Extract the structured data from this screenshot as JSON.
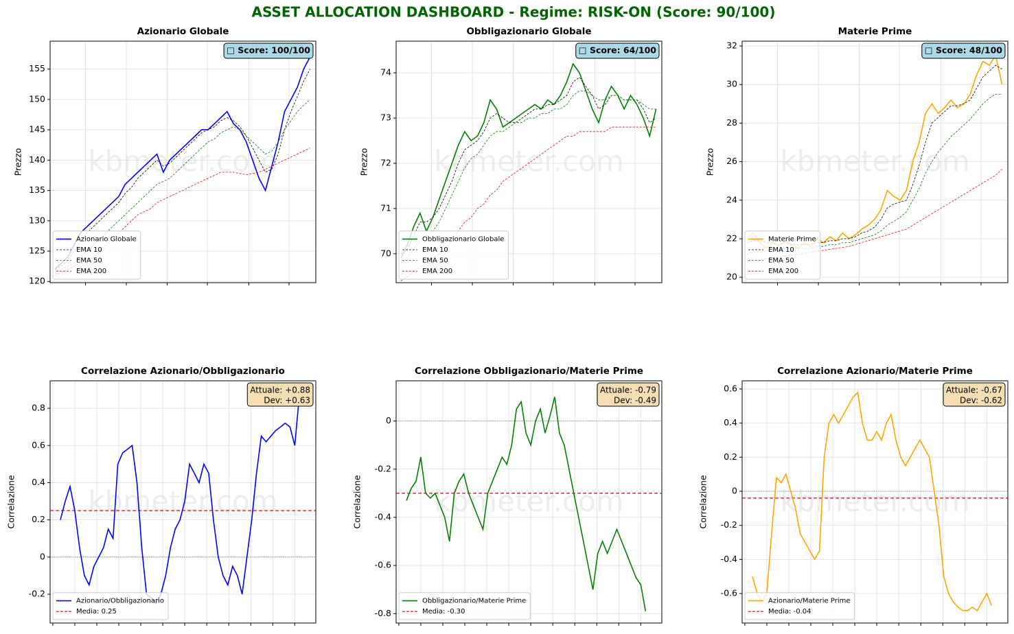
{
  "title": "ASSET ALLOCATION DASHBOARD - Regime: RISK-ON  (Score: 90/100)",
  "chart_data": [
    {
      "type": "line",
      "title": "Azionario Globale",
      "y_label": "Prezzo",
      "watermark": "kbmeter.com",
      "badge": "□ Score: 100/100",
      "xlim": [
        -0.75,
        40.9
      ],
      "xticks": [
        4.8,
        11.2,
        17.6,
        23.9,
        30.4,
        36.7
      ],
      "ylim": [
        119.8,
        159.6
      ],
      "yticks": [
        120,
        125,
        130,
        135,
        140,
        145,
        150,
        155
      ],
      "grid": true,
      "legend": "lower left",
      "series": [
        {
          "name": "Azionario Globale",
          "color": "#0000ff",
          "style": "solid",
          "values": [
            122,
            123,
            124,
            126,
            128,
            129,
            130,
            131,
            132,
            133,
            134,
            136,
            137,
            138,
            139,
            140,
            141,
            138,
            140,
            141,
            142,
            143,
            144,
            145,
            145,
            146,
            147,
            148,
            146,
            145,
            143,
            140,
            137,
            135,
            139,
            143,
            148,
            150,
            152,
            155,
            157
          ]
        },
        {
          "name": "EMA 10",
          "color": "#000000",
          "style": "dashed",
          "values": [
            122,
            122.5,
            123.5,
            125,
            126.5,
            128,
            129,
            130,
            131,
            132,
            133,
            134.5,
            135.5,
            137,
            138,
            139,
            140,
            139,
            139.5,
            140.5,
            141.5,
            142.5,
            143.5,
            144.5,
            145,
            145.5,
            146.5,
            147,
            146.5,
            145.5,
            144,
            142,
            140,
            138,
            138.5,
            141,
            145,
            148,
            150.5,
            153,
            155
          ]
        },
        {
          "name": "EMA 50",
          "color": "#008000",
          "style": "dashed",
          "values": [
            121.5,
            122,
            122.5,
            123,
            124,
            125,
            126,
            127,
            128,
            129,
            130,
            131,
            132,
            133,
            134,
            135,
            136,
            136.5,
            137,
            138,
            139,
            140,
            141,
            142,
            143,
            143.5,
            144.5,
            145,
            145.5,
            145,
            144,
            143,
            142,
            141,
            141.5,
            143,
            145,
            146.5,
            148,
            149,
            150
          ]
        },
        {
          "name": "EMA 200",
          "color": "#ff0000",
          "style": "dashed",
          "values": [
            121,
            121.5,
            122,
            122.5,
            123,
            123.5,
            124,
            125,
            126,
            127,
            128,
            129,
            130,
            131,
            131.5,
            132,
            133,
            133.5,
            134,
            134.5,
            135,
            135.5,
            136,
            136.5,
            137,
            137.5,
            138,
            138,
            138,
            137.8,
            137.6,
            137.8,
            138,
            138.5,
            139,
            139.5,
            140,
            140.5,
            141,
            141.5,
            142
          ]
        }
      ]
    },
    {
      "type": "line",
      "title": "Obbligazionario Globale",
      "y_label": "Prezzo",
      "watermark": "kbmeter.com",
      "badge": "□ Score: 64/100",
      "xlim": [
        -0.75,
        40.9
      ],
      "xticks": [
        4.8,
        11.2,
        17.6,
        23.9,
        30.4,
        36.7
      ],
      "ylim": [
        69.36,
        74.7
      ],
      "yticks": [
        70,
        71,
        72,
        73,
        74
      ],
      "grid": true,
      "legend": "lower left",
      "series": [
        {
          "name": "Obbligazionario Globale",
          "color": "#008000",
          "style": "solid",
          "values": [
            69.9,
            70.2,
            70.6,
            70.9,
            70.5,
            70.8,
            71.2,
            71.6,
            72.0,
            72.4,
            72.7,
            72.5,
            72.6,
            72.9,
            73.4,
            73.2,
            72.8,
            72.9,
            73.0,
            73.1,
            73.2,
            73.3,
            73.2,
            73.4,
            73.3,
            73.5,
            73.8,
            74.2,
            74.0,
            73.6,
            73.2,
            72.9,
            73.4,
            73.7,
            73.5,
            73.2,
            73.5,
            73.3,
            73.0,
            72.6,
            73.2
          ]
        },
        {
          "name": "EMA 10",
          "color": "#000000",
          "style": "dashed",
          "values": [
            70.0,
            70.1,
            70.4,
            70.7,
            70.7,
            70.8,
            71.0,
            71.3,
            71.6,
            72.0,
            72.3,
            72.4,
            72.5,
            72.7,
            73.0,
            73.1,
            73.0,
            72.9,
            72.9,
            73.0,
            73.1,
            73.2,
            73.2,
            73.3,
            73.3,
            73.4,
            73.5,
            73.8,
            73.9,
            73.7,
            73.5,
            73.2,
            73.3,
            73.5,
            73.5,
            73.4,
            73.4,
            73.4,
            73.2,
            72.9,
            73.0
          ]
        },
        {
          "name": "EMA 50",
          "color": "#008000",
          "style": "dashed",
          "values": [
            69.8,
            69.9,
            70.1,
            70.3,
            70.4,
            70.5,
            70.7,
            71.0,
            71.3,
            71.6,
            71.9,
            72.1,
            72.2,
            72.4,
            72.6,
            72.7,
            72.7,
            72.8,
            72.9,
            72.9,
            73.0,
            73.0,
            73.1,
            73.1,
            73.2,
            73.2,
            73.3,
            73.5,
            73.6,
            73.6,
            73.5,
            73.4,
            73.4,
            73.5,
            73.5,
            73.4,
            73.4,
            73.4,
            73.3,
            73.2,
            73.2
          ]
        },
        {
          "name": "EMA 200",
          "color": "#ff0000",
          "style": "dashed",
          "values": [
            69.4,
            69.5,
            69.6,
            69.7,
            69.8,
            69.9,
            70.0,
            70.1,
            70.3,
            70.5,
            70.7,
            70.8,
            71.0,
            71.1,
            71.3,
            71.4,
            71.6,
            71.7,
            71.8,
            71.9,
            72.0,
            72.1,
            72.2,
            72.3,
            72.4,
            72.5,
            72.6,
            72.6,
            72.7,
            72.7,
            72.7,
            72.7,
            72.7,
            72.8,
            72.8,
            72.8,
            72.8,
            72.8,
            72.8,
            72.8,
            72.8
          ]
        }
      ]
    },
    {
      "type": "line",
      "title": "Materie Prime",
      "y_label": "Prezzo",
      "watermark": "kbmeter.com",
      "badge": "□ Score: 48/100",
      "xlim": [
        -0.75,
        40.9
      ],
      "xticks": [
        4.8,
        11.2,
        17.6,
        23.9,
        30.4,
        36.7
      ],
      "ylim": [
        19.72,
        32.25
      ],
      "yticks": [
        20,
        22,
        24,
        26,
        28,
        30,
        32
      ],
      "grid": true,
      "legend": "lower left",
      "series": [
        {
          "name": "Materie Prime",
          "color": "#ffa500",
          "style": "solid",
          "values": [
            22.0,
            22.3,
            21.8,
            21.5,
            21.8,
            21.6,
            21.9,
            21.7,
            21.5,
            21.8,
            21.6,
            22.0,
            21.8,
            22.1,
            21.9,
            22.3,
            22.0,
            22.2,
            22.5,
            22.7,
            23.0,
            23.5,
            24.5,
            24.2,
            24.0,
            24.5,
            26.0,
            27.0,
            28.5,
            29.0,
            28.5,
            28.8,
            29.2,
            28.8,
            29.0,
            29.5,
            30.5,
            31.2,
            31.0,
            31.5,
            30.0
          ]
        },
        {
          "name": "EMA 10",
          "color": "#000000",
          "style": "dashed",
          "values": [
            21.8,
            21.9,
            21.9,
            21.8,
            21.8,
            21.7,
            21.8,
            21.7,
            21.7,
            21.7,
            21.7,
            21.8,
            21.8,
            21.9,
            21.9,
            22.0,
            22.0,
            22.1,
            22.3,
            22.4,
            22.6,
            23.0,
            23.6,
            23.8,
            23.9,
            24.0,
            24.8,
            25.8,
            27.0,
            28.0,
            28.3,
            28.6,
            28.9,
            28.9,
            29.0,
            29.2,
            29.8,
            30.4,
            30.7,
            31.0,
            30.8
          ]
        },
        {
          "name": "EMA 50",
          "color": "#008000",
          "style": "dashed",
          "values": [
            21.2,
            21.3,
            21.3,
            21.4,
            21.4,
            21.4,
            21.5,
            21.5,
            21.5,
            21.5,
            21.5,
            21.6,
            21.6,
            21.7,
            21.7,
            21.8,
            21.8,
            21.9,
            22.0,
            22.1,
            22.2,
            22.4,
            22.7,
            22.9,
            23.1,
            23.4,
            24.0,
            24.6,
            25.4,
            26.0,
            26.5,
            26.9,
            27.3,
            27.6,
            27.9,
            28.2,
            28.6,
            29.0,
            29.3,
            29.5,
            29.5
          ]
        },
        {
          "name": "EMA 200",
          "color": "#ff0000",
          "style": "dashed",
          "values": [
            20.8,
            20.85,
            20.9,
            20.95,
            21.0,
            21.05,
            21.1,
            21.15,
            21.2,
            21.25,
            21.3,
            21.35,
            21.4,
            21.45,
            21.5,
            21.55,
            21.6,
            21.7,
            21.8,
            21.9,
            22.0,
            22.1,
            22.2,
            22.3,
            22.4,
            22.5,
            22.7,
            22.9,
            23.1,
            23.3,
            23.5,
            23.7,
            23.9,
            24.1,
            24.3,
            24.5,
            24.7,
            24.9,
            25.1,
            25.3,
            25.6
          ]
        }
      ]
    },
    {
      "type": "line",
      "title": "Correlazione Azionario/Obbligazionario",
      "y_label": "Correlazione",
      "watermark": "kbmeter.com",
      "note": [
        "Attuale: +0.88",
        "Dev: +0.63"
      ],
      "xlim": [
        -2.16,
        53.4
      ],
      "xticks": [
        -1.6,
        3,
        7.6,
        12.2,
        16.8,
        21.4,
        26,
        30.6,
        35.2,
        39.8,
        44.4,
        49
      ],
      "ylim": [
        -0.355,
        0.948
      ],
      "yticks": [
        -0.2,
        0.0,
        0.2,
        0.4,
        0.6,
        0.8
      ],
      "grid": true,
      "legend": "lower left",
      "series": [
        {
          "name": "Azionario/Obbligazionario",
          "color": "#0000ff",
          "style": "solid",
          "values": [
            0.2,
            0.3,
            0.38,
            0.25,
            0.05,
            -0.1,
            -0.15,
            -0.05,
            0.0,
            0.05,
            0.15,
            0.1,
            0.5,
            0.56,
            0.58,
            0.6,
            0.4,
            0.05,
            -0.2,
            -0.22,
            -0.25,
            -0.2,
            -0.1,
            0.05,
            0.15,
            0.2,
            0.3,
            0.5,
            0.45,
            0.4,
            0.5,
            0.45,
            0.2,
            0.0,
            -0.1,
            -0.15,
            -0.05,
            -0.1,
            -0.2,
            0.0,
            0.2,
            0.45,
            0.65,
            0.62,
            0.65,
            0.68,
            0.7,
            0.72,
            0.7,
            0.6,
            0.88
          ]
        }
      ],
      "hline": {
        "name": "Media: 0.25",
        "value": 0.25,
        "color": "#ff0000"
      }
    },
    {
      "type": "line",
      "title": "Correlazione Obbligazionario/Materie Prime",
      "y_label": "Correlazione",
      "watermark": "kbmeter.com",
      "note": [
        "Attuale: -0.79",
        "Dev: -0.49"
      ],
      "xlim": [
        -2.16,
        53.4
      ],
      "xticks": [
        -1.6,
        3,
        7.6,
        12.2,
        16.8,
        21.4,
        26,
        30.6,
        35.2,
        39.8,
        44.4,
        49
      ],
      "ylim": [
        -0.839,
        0.167
      ],
      "yticks": [
        -0.8,
        -0.6,
        -0.4,
        -0.2,
        0.0
      ],
      "grid": true,
      "legend": "lower left",
      "series": [
        {
          "name": "Obbligazionario/Materie Prime",
          "color": "#008000",
          "style": "solid",
          "values": [
            -0.33,
            -0.28,
            -0.25,
            -0.15,
            -0.3,
            -0.32,
            -0.3,
            -0.35,
            -0.4,
            -0.5,
            -0.3,
            -0.25,
            -0.22,
            -0.3,
            -0.35,
            -0.4,
            -0.45,
            -0.3,
            -0.25,
            -0.2,
            -0.15,
            -0.18,
            -0.1,
            0.05,
            0.08,
            -0.05,
            -0.1,
            0.0,
            0.05,
            -0.05,
            0.02,
            0.1,
            -0.05,
            -0.1,
            -0.2,
            -0.3,
            -0.4,
            -0.5,
            -0.6,
            -0.7,
            -0.55,
            -0.5,
            -0.55,
            -0.5,
            -0.45,
            -0.5,
            -0.55,
            -0.6,
            -0.65,
            -0.68,
            -0.79
          ]
        }
      ],
      "hline": {
        "name": "Media: -0.30",
        "value": -0.3,
        "color": "#ff0000"
      }
    },
    {
      "type": "line",
      "title": "Correlazione Azionario/Materie Prime",
      "y_label": "Correlazione",
      "watermark": "kbmeter.com",
      "note": [
        "Attuale: -0.67",
        "Dev: -0.62"
      ],
      "xlim": [
        -2.16,
        53.4
      ],
      "xticks": [
        -1.6,
        3,
        7.6,
        12.2,
        16.8,
        21.4,
        26,
        30.6,
        35.2,
        39.8,
        44.4,
        49
      ],
      "ylim": [
        -0.773,
        0.648
      ],
      "yticks": [
        -0.6,
        -0.4,
        -0.2,
        0.0,
        0.2,
        0.4,
        0.6
      ],
      "grid": true,
      "legend": "lower left",
      "series": [
        {
          "name": "Azionario/Materie Prime",
          "color": "#ffa500",
          "style": "solid",
          "values": [
            -0.5,
            -0.6,
            -0.65,
            -0.6,
            -0.25,
            0.08,
            0.05,
            0.1,
            0.0,
            -0.1,
            -0.25,
            -0.3,
            -0.35,
            -0.4,
            -0.35,
            0.2,
            0.4,
            0.45,
            0.4,
            0.45,
            0.5,
            0.55,
            0.58,
            0.4,
            0.3,
            0.3,
            0.35,
            0.3,
            0.4,
            0.45,
            0.3,
            0.2,
            0.15,
            0.2,
            0.25,
            0.3,
            0.25,
            0.2,
            0.0,
            -0.2,
            -0.5,
            -0.6,
            -0.65,
            -0.68,
            -0.7,
            -0.7,
            -0.68,
            -0.7,
            -0.65,
            -0.6,
            -0.67
          ]
        }
      ],
      "hline": {
        "name": "Media: -0.04",
        "value": -0.04,
        "color": "#ff0000"
      }
    }
  ]
}
